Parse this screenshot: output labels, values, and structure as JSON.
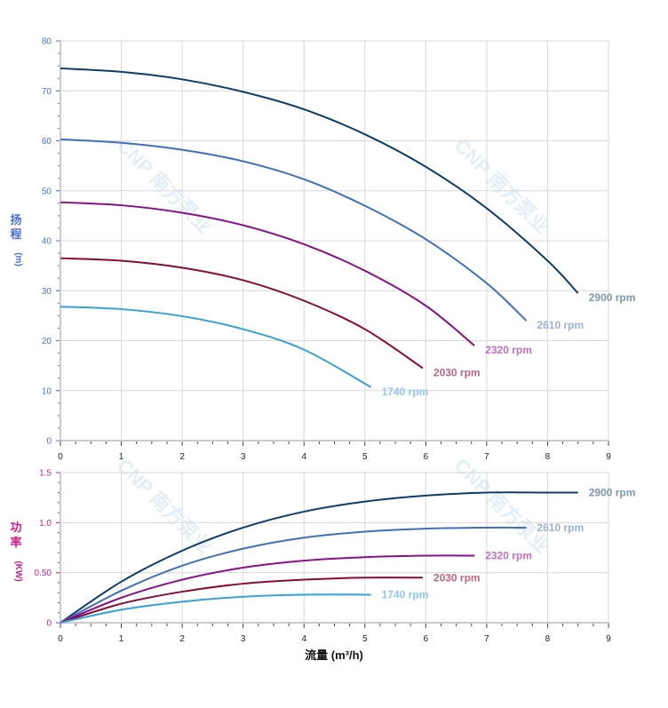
{
  "watermark": "CNP 南方泵业",
  "colors": {
    "head_axis": "#4a6fe0",
    "power_axis": "#d0208a",
    "grid": "#d8d8d8"
  },
  "chart_data": [
    {
      "type": "line",
      "ylabel_chars": [
        "扬",
        "程"
      ],
      "ylabel_unit": "(m)",
      "xlim": [
        0,
        9
      ],
      "ylim": [
        0,
        80
      ],
      "xticks": [
        "0",
        "1",
        "2",
        "3",
        "4",
        "5",
        "6",
        "7",
        "8",
        "9"
      ],
      "yticks": [
        "0",
        "10",
        "20",
        "30",
        "40",
        "50",
        "60",
        "70",
        "80"
      ],
      "grid": true,
      "series": [
        {
          "name": "2900 rpm",
          "color": "#0d3d6b",
          "label_color": "#7d97ab",
          "x": [
            0,
            1,
            2,
            3,
            4,
            5,
            6,
            7,
            8,
            8.5
          ],
          "y": [
            74.5,
            73.8,
            72.3,
            69.8,
            66.3,
            61.3,
            54.8,
            46.5,
            36,
            29.5
          ]
        },
        {
          "name": "2610 rpm",
          "color": "#3f6fbf",
          "label_color": "#9cb0d8",
          "x": [
            0,
            1,
            2,
            3,
            4,
            5,
            6,
            7,
            7.65
          ],
          "y": [
            60.3,
            59.6,
            58.2,
            55.9,
            52.3,
            47,
            40.3,
            31.5,
            24
          ]
        },
        {
          "name": "2320 rpm",
          "color": "#8b0f8b",
          "label_color": "#c36fc3",
          "x": [
            0,
            1,
            2,
            3,
            4,
            5,
            6,
            6.8
          ],
          "y": [
            47.7,
            47.1,
            45.6,
            43.1,
            39.3,
            34,
            27,
            19
          ]
        },
        {
          "name": "2030 rpm",
          "color": "#8b0a35",
          "label_color": "#c0667f",
          "x": [
            0,
            1,
            2,
            3,
            4,
            5,
            5.95
          ],
          "y": [
            36.5,
            36,
            34.6,
            32.1,
            28,
            22.3,
            14.5
          ]
        },
        {
          "name": "1740 rpm",
          "color": "#36a2dc",
          "label_color": "#8ec8ec",
          "x": [
            0,
            1,
            2,
            3,
            4,
            5.1
          ],
          "y": [
            26.8,
            26.3,
            24.9,
            22.3,
            18.2,
            10.7
          ]
        }
      ]
    },
    {
      "type": "line",
      "ylabel_chars": [
        "功",
        "率"
      ],
      "ylabel_unit": "(KW)",
      "xlabel": "流量 (m³/h)",
      "xlim": [
        0,
        9
      ],
      "ylim": [
        0,
        1.5
      ],
      "xticks": [
        "0",
        "1",
        "2",
        "3",
        "4",
        "5",
        "6",
        "7",
        "8",
        "9"
      ],
      "yticks": [
        "0",
        "0.50",
        "1.0",
        "1.5"
      ],
      "grid": true,
      "series": [
        {
          "name": "2900 rpm",
          "color": "#0d3d6b",
          "label_color": "#7d97ab",
          "x": [
            0,
            1,
            2,
            3,
            4,
            5,
            6,
            7,
            8,
            8.5
          ],
          "y": [
            0,
            0.41,
            0.72,
            0.95,
            1.11,
            1.21,
            1.27,
            1.3,
            1.3,
            1.3
          ]
        },
        {
          "name": "2610 rpm",
          "color": "#3f6fbf",
          "label_color": "#9cb0d8",
          "x": [
            0,
            1,
            2,
            3,
            4,
            5,
            6,
            7,
            7.65
          ],
          "y": [
            0,
            0.32,
            0.57,
            0.74,
            0.85,
            0.91,
            0.94,
            0.95,
            0.95
          ]
        },
        {
          "name": "2320 rpm",
          "color": "#8b0f8b",
          "label_color": "#c36fc3",
          "x": [
            0,
            1,
            2,
            3,
            4,
            5,
            6,
            6.8
          ],
          "y": [
            0,
            0.25,
            0.43,
            0.55,
            0.62,
            0.655,
            0.67,
            0.67
          ]
        },
        {
          "name": "2030 rpm",
          "color": "#8b0a35",
          "label_color": "#c0667f",
          "x": [
            0,
            1,
            2,
            3,
            4,
            5,
            5.95
          ],
          "y": [
            0,
            0.19,
            0.31,
            0.39,
            0.43,
            0.45,
            0.45
          ]
        },
        {
          "name": "1740 rpm",
          "color": "#36a2dc",
          "label_color": "#8ec8ec",
          "x": [
            0,
            1,
            2,
            3,
            4,
            5.1
          ],
          "y": [
            0,
            0.13,
            0.21,
            0.26,
            0.28,
            0.28
          ]
        }
      ]
    }
  ]
}
